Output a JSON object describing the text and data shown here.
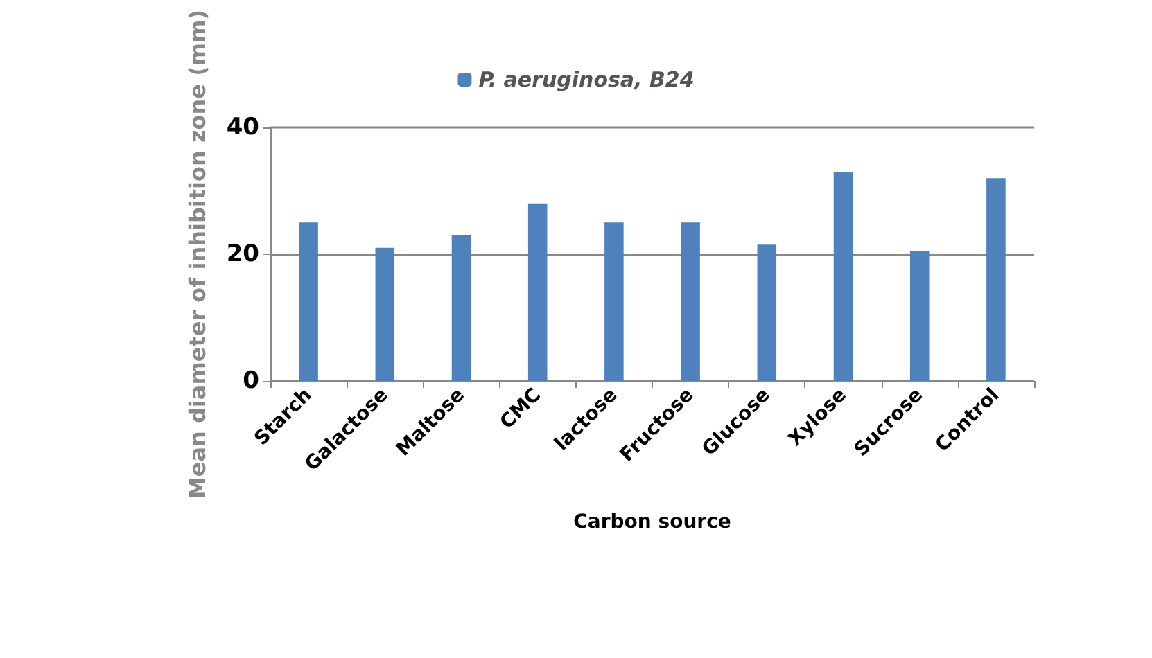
{
  "chart_data": {
    "type": "bar",
    "xlabel": "Carbon source",
    "ylabel": "Mean diameter of inhibition zone (mm)",
    "categories": [
      "Starch",
      "Galactose",
      "Maltose",
      "CMC",
      "lactose",
      "Fructose",
      "Glucose",
      "Xylose",
      "Sucrose",
      "Control"
    ],
    "series": [
      {
        "name": "P. aeruginosa, B24",
        "color": "#4f81bd",
        "values": [
          25,
          21,
          23,
          28,
          25,
          25,
          21.5,
          33,
          20.5,
          32
        ]
      }
    ],
    "ylim": [
      0,
      40
    ],
    "yticks": [
      0,
      20,
      40
    ],
    "grid": "y",
    "legend": "top"
  }
}
